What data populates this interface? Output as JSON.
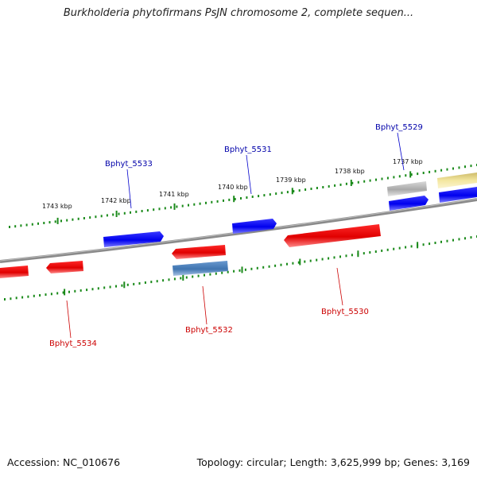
{
  "title": "Burkholderia phytofirmans PsJN chromosome 2, complete sequen...",
  "footer": {
    "accession": "Accession: NC_010676",
    "summary": "Topology: circular; Length: 3,625,999 bp; Genes: 3,169"
  },
  "scale_ticks": [
    {
      "label": "1743 kbp"
    },
    {
      "label": "1742 kbp"
    },
    {
      "label": "1741 kbp"
    },
    {
      "label": "1740 kbp"
    },
    {
      "label": "1739 kbp"
    },
    {
      "label": "1738 kbp"
    },
    {
      "label": "1737 kbp"
    }
  ],
  "genes": [
    {
      "label": "Bphyt_5529",
      "strand": "forward",
      "color": "#0000cc"
    },
    {
      "label": "Bphyt_5531",
      "strand": "forward",
      "color": "#0000cc"
    },
    {
      "label": "Bphyt_5533",
      "strand": "forward",
      "color": "#0000cc"
    },
    {
      "label": "Bphyt_5530",
      "strand": "reverse",
      "color": "#cc0000"
    },
    {
      "label": "Bphyt_5532",
      "strand": "reverse",
      "color": "#cc0000"
    },
    {
      "label": "Bphyt_5534",
      "strand": "reverse",
      "color": "#cc0000"
    }
  ],
  "colors": {
    "forward_gene": "#0000ff",
    "reverse_gene": "#ff0000",
    "backbone": "#808080",
    "scale_dots": "#1a8a1a",
    "other_gene": "#4a80b8",
    "pseudo_gene": "#bdbdbd",
    "misc_feature": "#f4e7a0"
  }
}
